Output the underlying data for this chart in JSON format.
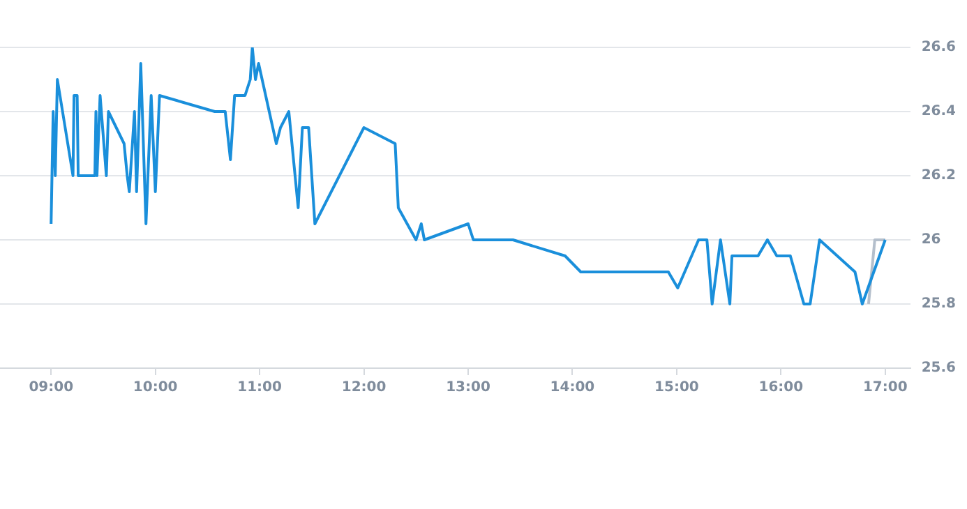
{
  "chart_data": {
    "type": "line",
    "xlim": [
      8.51,
      17.24
    ],
    "xticks": [
      {
        "value": 9,
        "label": "09:00"
      },
      {
        "value": 10,
        "label": "10:00"
      },
      {
        "value": 11,
        "label": "11:00"
      },
      {
        "value": 12,
        "label": "12:00"
      },
      {
        "value": 13,
        "label": "13:00"
      },
      {
        "value": 14,
        "label": "14:00"
      },
      {
        "value": 15,
        "label": "15:00"
      },
      {
        "value": 16,
        "label": "16:00"
      },
      {
        "value": 17,
        "label": "17:00"
      }
    ],
    "ylim": [
      25.6,
      26.6
    ],
    "yticks": [
      25.6,
      25.8,
      26,
      26.2,
      26.4,
      26.6
    ],
    "grid": "y",
    "legend": false,
    "marker": "none",
    "line_style": "solid",
    "series": [
      {
        "color": "#b4bfcc",
        "x": [
          16.84,
          16.9,
          17.0
        ],
        "values": [
          25.8,
          26.0,
          26.0
        ]
      },
      {
        "color": "#1a8fdb",
        "x": [
          9.0,
          9.02,
          9.04,
          9.06,
          9.21,
          9.22,
          9.25,
          9.26,
          9.42,
          9.43,
          9.44,
          9.47,
          9.53,
          9.55,
          9.7,
          9.73,
          9.75,
          9.8,
          9.82,
          9.86,
          9.91,
          9.96,
          10.0,
          10.04,
          10.57,
          10.67,
          10.72,
          10.76,
          10.86,
          10.91,
          10.93,
          10.96,
          10.99,
          11.16,
          11.2,
          11.28,
          11.37,
          11.41,
          11.47,
          11.53,
          12.0,
          12.3,
          12.33,
          12.5,
          12.55,
          12.58,
          13.0,
          13.05,
          13.43,
          13.93,
          14.08,
          14.92,
          15.01,
          15.21,
          15.29,
          15.34,
          15.42,
          15.51,
          15.53,
          15.78,
          15.87,
          15.96,
          16.09,
          16.22,
          16.28,
          16.37,
          16.71,
          16.78,
          17.0
        ],
        "values": [
          26.05,
          26.4,
          26.2,
          26.5,
          26.2,
          26.45,
          26.45,
          26.2,
          26.2,
          26.4,
          26.2,
          26.45,
          26.2,
          26.4,
          26.3,
          26.2,
          26.15,
          26.4,
          26.15,
          26.55,
          26.05,
          26.45,
          26.15,
          26.45,
          26.4,
          26.4,
          26.25,
          26.45,
          26.45,
          26.5,
          26.6,
          26.5,
          26.55,
          26.3,
          26.35,
          26.4,
          26.1,
          26.35,
          26.35,
          26.05,
          26.35,
          26.3,
          26.1,
          26.0,
          26.05,
          26.0,
          26.05,
          26.0,
          26.0,
          25.95,
          25.9,
          25.9,
          25.85,
          26.0,
          26.0,
          25.8,
          26.0,
          25.8,
          25.95,
          25.95,
          26.0,
          25.95,
          25.95,
          25.8,
          25.8,
          26.0,
          25.9,
          25.8,
          26.0
        ]
      }
    ]
  }
}
